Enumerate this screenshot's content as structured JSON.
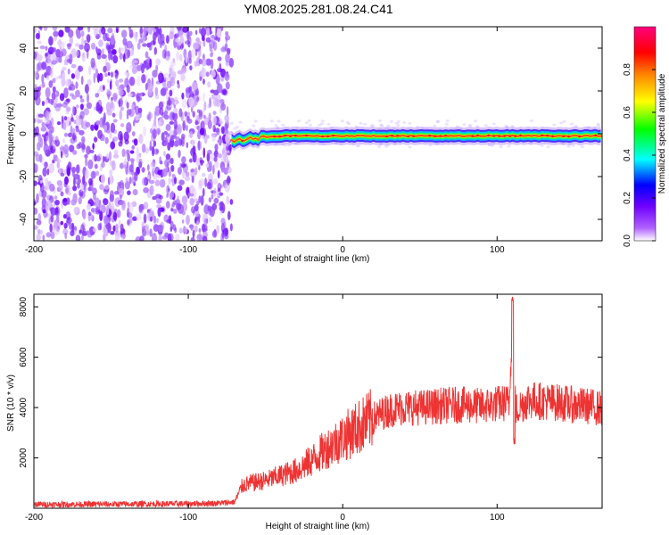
{
  "chart_data": [
    {
      "type": "heatmap",
      "title": "YM08.2025.281.08.24.C41",
      "xlabel": "Height of straight line (km)",
      "ylabel": "Frequency (Hz)",
      "xlim": [
        -200,
        168
      ],
      "ylim": [
        -50,
        50
      ],
      "xticks": [
        -200,
        -100,
        0,
        100
      ],
      "yticks": [
        -40,
        -20,
        0,
        20,
        40
      ],
      "noise_region_x": [
        -200,
        -72
      ],
      "signal_ridge_frequency_hz": 0,
      "colorbar": {
        "label": "Normalized spectral amplitude",
        "range": [
          0,
          1
        ],
        "ticks": [
          "0.0",
          "0.2",
          "0.4",
          "0.6",
          "0.8"
        ],
        "colormap": [
          "#ffffff",
          "#8000ff",
          "#0000ff",
          "#00ffff",
          "#00ff00",
          "#ffff00",
          "#ff8000",
          "#ff0000",
          "#ff0080"
        ]
      }
    },
    {
      "type": "line",
      "xlabel": "Height of straight line (km)",
      "ylabel": "SNR (10 * v/v)",
      "xlim": [
        -200,
        168
      ],
      "ylim": [
        0,
        8500
      ],
      "xticks": [
        -200,
        -100,
        0,
        100
      ],
      "yticks": [
        2000,
        4000,
        6000,
        8000
      ],
      "line_color": "#ee3333",
      "series": [
        {
          "name": "SNR",
          "x": [
            -200,
            -150,
            -100,
            -80,
            -70,
            -65,
            -60,
            -50,
            -40,
            -30,
            -20,
            -10,
            0,
            10,
            20,
            30,
            40,
            50,
            60,
            70,
            80,
            90,
            100,
            108,
            110,
            112,
            120,
            130,
            140,
            150,
            160,
            168
          ],
          "y": [
            150,
            160,
            180,
            200,
            250,
            900,
            1000,
            1100,
            1300,
            1500,
            1900,
            2400,
            2800,
            3200,
            3600,
            3900,
            4000,
            4000,
            4050,
            4100,
            4100,
            4050,
            4150,
            4200,
            8400,
            3900,
            4300,
            4250,
            4200,
            4100,
            4050,
            3950
          ]
        }
      ]
    }
  ]
}
